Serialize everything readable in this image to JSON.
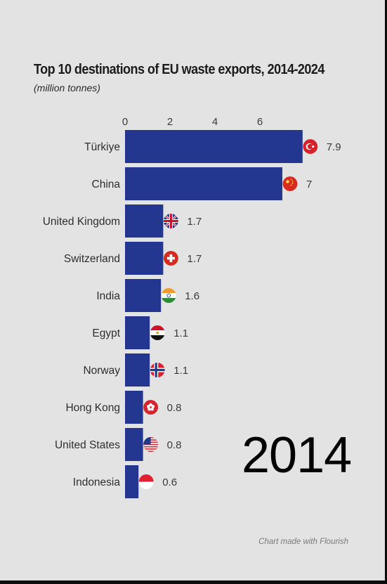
{
  "title": "Top 10 destinations of EU waste exports, 2014-2024",
  "subtitle": "(million tonnes)",
  "year_label": "2014",
  "credit": "Chart made with Flourish",
  "colors": {
    "bar": "#233791",
    "background": "#e3e3e3",
    "text": "#3a3a3a"
  },
  "chart_data": {
    "type": "bar",
    "orientation": "horizontal",
    "title": "Top 10 destinations of EU waste exports, 2014-2024",
    "subtitle": "(million tonnes)",
    "xticks": [
      "0",
      "2",
      "4",
      "6"
    ],
    "xlim": [
      0,
      8
    ],
    "grid": false,
    "categories": [
      "Türkiye",
      "China",
      "United Kingdom",
      "Switzerland",
      "India",
      "Egypt",
      "Norway",
      "Hong Kong",
      "United States",
      "Indonesia"
    ],
    "values": [
      7.9,
      7,
      1.7,
      1.7,
      1.6,
      1.1,
      1.1,
      0.8,
      0.8,
      0.6
    ],
    "value_labels": [
      "7.9",
      "7",
      "1.7",
      "1.7",
      "1.6",
      "1.1",
      "1.1",
      "0.8",
      "0.8",
      "0.6"
    ],
    "flags": [
      "turkey-flag",
      "china-flag",
      "uk-flag",
      "switzerland-flag",
      "india-flag",
      "egypt-flag",
      "norway-flag",
      "hong-kong-flag",
      "usa-flag",
      "indonesia-flag"
    ]
  }
}
